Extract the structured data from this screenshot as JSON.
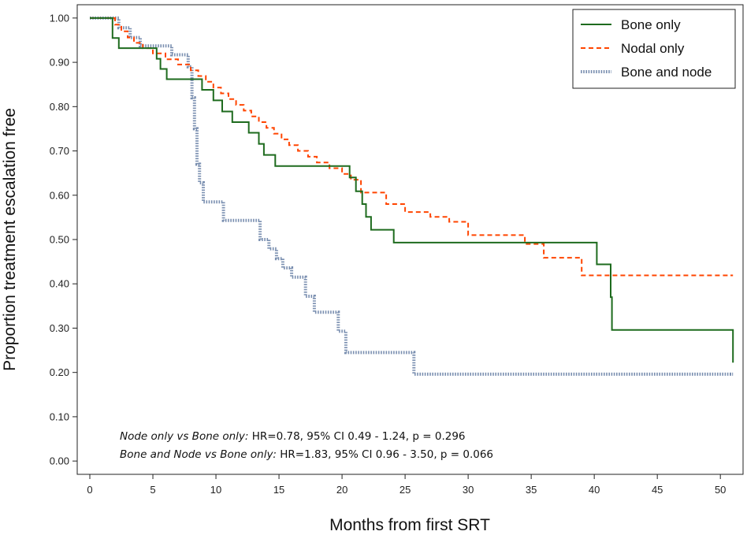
{
  "chart_data": {
    "type": "line",
    "step": true,
    "xlabel": "Months from first SRT",
    "ylabel": "Proportion treatment escalation free",
    "xlim": [
      -1,
      51.8
    ],
    "ylim": [
      -0.03,
      1.03
    ],
    "x_ticks": [
      0,
      5,
      10,
      15,
      20,
      25,
      30,
      35,
      40,
      45,
      50
    ],
    "x_tick_labels": [
      "0",
      "5",
      "10",
      "15",
      "20",
      "25",
      "30",
      "35",
      "40",
      "45",
      "50"
    ],
    "y_ticks": [
      0,
      0.1,
      0.2,
      0.3,
      0.4,
      0.5,
      0.6,
      0.7,
      0.8,
      0.9,
      1.0
    ],
    "y_tick_labels": [
      "0.00",
      "0.10",
      "0.20",
      "0.30",
      "0.40",
      "0.50",
      "0.60",
      "0.70",
      "0.80",
      "0.90",
      "1.00"
    ],
    "grid": false,
    "legend_position": "top-right",
    "series": [
      {
        "name": "Bone only",
        "color": "#1e6b1e",
        "style": "solid",
        "x": [
          0,
          1.8,
          2.3,
          5.3,
          5.6,
          6.1,
          8.9,
          9.8,
          10.5,
          11.3,
          12.6,
          13.4,
          13.8,
          14.7,
          20.6,
          21.1,
          21.6,
          21.9,
          22.3,
          24.1,
          34.7,
          40.2,
          41.3,
          41.4,
          51
        ],
        "y": [
          1.0,
          0.955,
          0.932,
          0.908,
          0.885,
          0.862,
          0.838,
          0.814,
          0.789,
          0.765,
          0.741,
          0.716,
          0.691,
          0.666,
          0.64,
          0.609,
          0.58,
          0.551,
          0.522,
          0.493,
          0.493,
          0.444,
          0.37,
          0.296,
          0.222
        ],
        "final_x": 51
      },
      {
        "name": "Nodal only",
        "color": "#ff4500",
        "style": "dashed",
        "x": [
          0,
          2.0,
          2.5,
          3.0,
          3.5,
          4.2,
          5.0,
          6.0,
          7.0,
          8.0,
          8.6,
          9.2,
          9.8,
          10.4,
          11.0,
          11.6,
          12.2,
          12.8,
          13.4,
          14.0,
          14.6,
          15.2,
          15.8,
          16.5,
          17.3,
          18.0,
          19.0,
          20.0,
          20.7,
          21.5,
          23.5,
          25.0,
          27.0,
          28.5,
          30.0,
          34.5,
          36.0,
          39.0,
          51
        ],
        "y": [
          1.0,
          0.985,
          0.97,
          0.956,
          0.944,
          0.932,
          0.92,
          0.907,
          0.895,
          0.882,
          0.869,
          0.856,
          0.843,
          0.83,
          0.817,
          0.804,
          0.791,
          0.778,
          0.765,
          0.752,
          0.739,
          0.726,
          0.713,
          0.7,
          0.687,
          0.674,
          0.661,
          0.648,
          0.635,
          0.606,
          0.58,
          0.562,
          0.551,
          0.54,
          0.51,
          0.49,
          0.459,
          0.419,
          0.419
        ],
        "final_x": 50.8
      },
      {
        "name": "Bone and node",
        "color": "#7a8fb0",
        "style": "dotted",
        "x": [
          0,
          2.3,
          3.2,
          4.0,
          6.5,
          7.8,
          8.1,
          8.3,
          8.5,
          8.7,
          9.0,
          10.6,
          13.5,
          14.2,
          14.8,
          15.3,
          16.0,
          17.1,
          17.8,
          19.7,
          20.3,
          25.7,
          51
        ],
        "y": [
          1.0,
          0.978,
          0.956,
          0.937,
          0.917,
          0.89,
          0.82,
          0.75,
          0.67,
          0.628,
          0.585,
          0.543,
          0.5,
          0.479,
          0.457,
          0.436,
          0.415,
          0.372,
          0.336,
          0.293,
          0.245,
          0.196,
          0.196
        ],
        "final_x": 50.8
      }
    ],
    "annotations": [
      {
        "label": "Node only vs Bone only:",
        "text": " HR=0.78, 95% CI 0.49 - 1.24, p = 0.296"
      },
      {
        "label": "Bone and Node vs Bone only:",
        "text": " HR=1.83, 95% CI 0.96 - 3.50, p = 0.066"
      }
    ]
  }
}
